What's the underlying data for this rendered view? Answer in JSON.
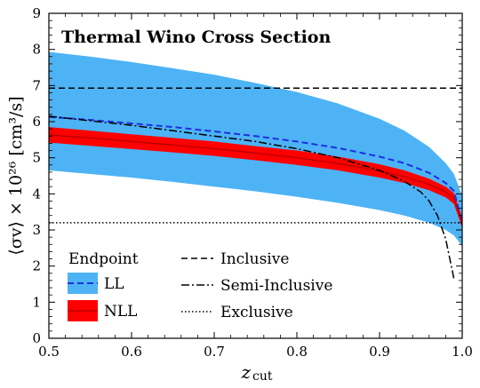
{
  "chart_data": {
    "type": "area",
    "title": "Thermal Wino Cross Section",
    "xlabel_main": "z",
    "xlabel_sub": "cut",
    "ylabel": "⟨σv⟩ × 10²⁶ [cm³/s]",
    "xlim": [
      0.5,
      1.0
    ],
    "ylim": [
      0,
      9
    ],
    "x_ticks": [
      "0.5",
      "0.6",
      "0.7",
      "0.8",
      "0.9",
      "1.0"
    ],
    "y_ticks": [
      "0",
      "1",
      "2",
      "3",
      "4",
      "5",
      "6",
      "7",
      "8",
      "9"
    ],
    "grid": false,
    "colors": {
      "ll_band": "#4db3f5",
      "ll_line": "#1f2fe0",
      "nll_band": "#ff0000",
      "nll_line": "#b00000",
      "reference": "#000000"
    },
    "series": [
      {
        "name": "LL",
        "kind": "band",
        "x": [
          0.5,
          0.55,
          0.6,
          0.65,
          0.7,
          0.75,
          0.8,
          0.85,
          0.9,
          0.93,
          0.96,
          0.98,
          0.99,
          1.0
        ],
        "upper": [
          7.93,
          7.8,
          7.65,
          7.48,
          7.3,
          7.07,
          6.82,
          6.5,
          6.08,
          5.75,
          5.3,
          4.85,
          4.55,
          3.95
        ],
        "lower": [
          4.65,
          4.55,
          4.45,
          4.33,
          4.2,
          4.07,
          3.92,
          3.75,
          3.55,
          3.4,
          3.2,
          3.0,
          2.85,
          2.55
        ],
        "central": [
          6.13,
          6.05,
          5.95,
          5.85,
          5.73,
          5.6,
          5.45,
          5.27,
          5.03,
          4.85,
          4.58,
          4.3,
          4.08,
          3.2
        ]
      },
      {
        "name": "NLL",
        "kind": "band",
        "x": [
          0.5,
          0.55,
          0.6,
          0.65,
          0.7,
          0.75,
          0.8,
          0.85,
          0.9,
          0.93,
          0.96,
          0.98,
          0.99,
          1.0
        ],
        "upper": [
          5.85,
          5.75,
          5.65,
          5.55,
          5.45,
          5.32,
          5.2,
          5.03,
          4.82,
          4.65,
          4.42,
          4.2,
          4.02,
          3.35
        ],
        "lower": [
          5.42,
          5.33,
          5.24,
          5.15,
          5.05,
          4.93,
          4.8,
          4.65,
          4.45,
          4.3,
          4.1,
          3.9,
          3.72,
          3.05
        ],
        "central": [
          5.63,
          5.55,
          5.45,
          5.35,
          5.25,
          5.13,
          5.0,
          4.84,
          4.63,
          4.48,
          4.26,
          4.05,
          3.87,
          3.2
        ]
      },
      {
        "name": "Inclusive",
        "kind": "line",
        "style": "dashed",
        "x": [
          0.5,
          1.0
        ],
        "y": [
          6.93,
          6.93
        ]
      },
      {
        "name": "Semi-Inclusive",
        "kind": "line",
        "style": "dashdot",
        "x": [
          0.5,
          0.6,
          0.7,
          0.75,
          0.8,
          0.85,
          0.9,
          0.93,
          0.95,
          0.96,
          0.97,
          0.98,
          0.99
        ],
        "y": [
          6.15,
          5.9,
          5.6,
          5.45,
          5.25,
          5.0,
          4.65,
          4.35,
          4.05,
          3.8,
          3.4,
          2.75,
          1.65
        ]
      },
      {
        "name": "Exclusive",
        "kind": "line",
        "style": "dotted",
        "x": [
          0.5,
          1.0
        ],
        "y": [
          3.2,
          3.2
        ]
      }
    ],
    "legend": {
      "placement": "bottom-left",
      "title": "Endpoint",
      "entries": [
        "LL",
        "NLL",
        "Inclusive",
        "Semi-Inclusive",
        "Exclusive"
      ]
    }
  }
}
